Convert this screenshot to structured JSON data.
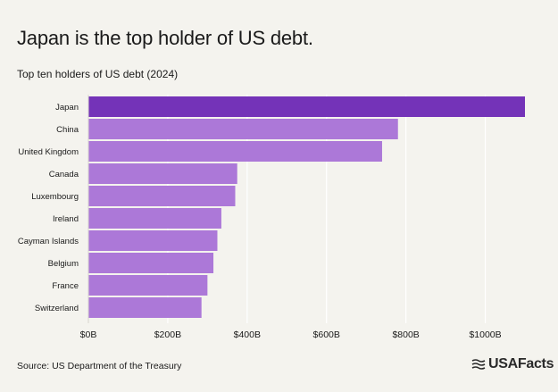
{
  "header": {
    "title": "Japan is the top holder of US debt.",
    "subtitle": "Top ten holders of US debt (2024)"
  },
  "footer": {
    "source": "Source: US Department of the Treasury",
    "logo_text": "USAFacts"
  },
  "colors": {
    "highlight": "#7433b8",
    "bar": "#ac78d8",
    "background": "#f4f3ee",
    "grid": "#ffffff"
  },
  "chart_data": {
    "type": "bar",
    "orientation": "horizontal",
    "categories": [
      "Japan",
      "China",
      "United Kingdom",
      "Canada",
      "Luxembourg",
      "Ireland",
      "Cayman Islands",
      "Belgium",
      "France",
      "Switzerland"
    ],
    "values": [
      1100,
      780,
      740,
      375,
      370,
      335,
      325,
      315,
      300,
      285
    ],
    "highlight_index": 0,
    "x_ticks": [
      0,
      200,
      400,
      600,
      800,
      1000
    ],
    "x_tick_labels": [
      "$0B",
      "$200B",
      "$400B",
      "$600B",
      "$800B",
      "$1000B"
    ],
    "xlim": [
      0,
      1100
    ],
    "grid": true
  }
}
